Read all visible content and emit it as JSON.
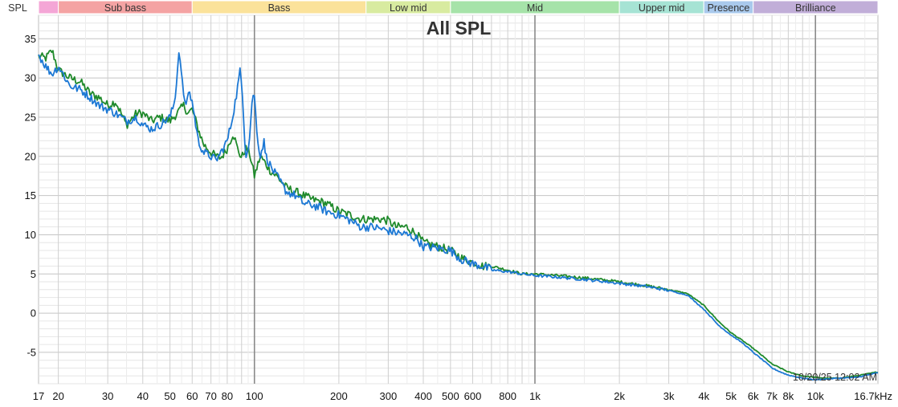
{
  "chart_data": {
    "type": "line",
    "title": "All SPL",
    "ylabel": "SPL",
    "timestamp": "10/20/25 12:02 AM",
    "x_scale": "log",
    "xlim": [
      17,
      16700
    ],
    "ylim": [
      -9,
      38
    ],
    "grid": true,
    "x_ticks": [
      {
        "v": 17,
        "label": "17"
      },
      {
        "v": 20,
        "label": "20"
      },
      {
        "v": 30,
        "label": "30"
      },
      {
        "v": 40,
        "label": "40"
      },
      {
        "v": 50,
        "label": "50"
      },
      {
        "v": 60,
        "label": "60"
      },
      {
        "v": 70,
        "label": "70"
      },
      {
        "v": 80,
        "label": "80"
      },
      {
        "v": 100,
        "label": "100"
      },
      {
        "v": 200,
        "label": "200"
      },
      {
        "v": 300,
        "label": "300"
      },
      {
        "v": 400,
        "label": "400"
      },
      {
        "v": 500,
        "label": "500"
      },
      {
        "v": 600,
        "label": "600"
      },
      {
        "v": 800,
        "label": "800"
      },
      {
        "v": 1000,
        "label": "1k"
      },
      {
        "v": 2000,
        "label": "2k"
      },
      {
        "v": 3000,
        "label": "3k"
      },
      {
        "v": 4000,
        "label": "4k"
      },
      {
        "v": 5000,
        "label": "5k"
      },
      {
        "v": 6000,
        "label": "6k"
      },
      {
        "v": 7000,
        "label": "7k"
      },
      {
        "v": 8000,
        "label": "8k"
      },
      {
        "v": 10000,
        "label": "10k"
      },
      {
        "v": 16700,
        "label": "16.7kHz"
      }
    ],
    "y_ticks": [
      {
        "v": 35,
        "label": "35"
      },
      {
        "v": 30,
        "label": "30"
      },
      {
        "v": 25,
        "label": "25"
      },
      {
        "v": 20,
        "label": "20"
      },
      {
        "v": 15,
        "label": "15"
      },
      {
        "v": 10,
        "label": "10"
      },
      {
        "v": 5,
        "label": "5"
      },
      {
        "v": 0,
        "label": "0"
      },
      {
        "v": -5,
        "label": "-5"
      }
    ],
    "bands": [
      {
        "name": "",
        "from": 17,
        "to": 20,
        "color": "#f4a6d6"
      },
      {
        "name": "Sub bass",
        "from": 20,
        "to": 60,
        "color": "#f4a3a3"
      },
      {
        "name": "Bass",
        "from": 60,
        "to": 250,
        "color": "#fbe29a"
      },
      {
        "name": "Low mid",
        "from": 250,
        "to": 500,
        "color": "#d8eba0"
      },
      {
        "name": "Mid",
        "from": 500,
        "to": 2000,
        "color": "#a6e3a9"
      },
      {
        "name": "Upper mid",
        "from": 2000,
        "to": 4000,
        "color": "#a6e3d4"
      },
      {
        "name": "Presence",
        "from": 4000,
        "to": 6000,
        "color": "#a9c9ec"
      },
      {
        "name": "Brilliance",
        "from": 6000,
        "to": 16700,
        "color": "#c1aed8"
      }
    ],
    "series": [
      {
        "color": "#1f8a2b",
        "points": [
          [
            17,
            32.8
          ],
          [
            18,
            32.5
          ],
          [
            19,
            33.5
          ],
          [
            20,
            31.0
          ],
          [
            22,
            30.0
          ],
          [
            24,
            29.5
          ],
          [
            26,
            28.0
          ],
          [
            28,
            27.5
          ],
          [
            30,
            26.5
          ],
          [
            32,
            27.0
          ],
          [
            35,
            24.0
          ],
          [
            38,
            25.5
          ],
          [
            40,
            25.5
          ],
          [
            43,
            24.5
          ],
          [
            46,
            25.0
          ],
          [
            50,
            24.5
          ],
          [
            53,
            25.5
          ],
          [
            56,
            26.5
          ],
          [
            58,
            25.5
          ],
          [
            60,
            26.0
          ],
          [
            63,
            23.5
          ],
          [
            66,
            21.5
          ],
          [
            70,
            20.5
          ],
          [
            73,
            20.0
          ],
          [
            76,
            19.8
          ],
          [
            80,
            21.0
          ],
          [
            84,
            23.0
          ],
          [
            87,
            21.0
          ],
          [
            90,
            19.8
          ],
          [
            93,
            21.0
          ],
          [
            96,
            20.5
          ],
          [
            100,
            17.5
          ],
          [
            105,
            20.0
          ],
          [
            110,
            19.0
          ],
          [
            115,
            18.0
          ],
          [
            120,
            17.5
          ],
          [
            130,
            16.0
          ],
          [
            140,
            15.5
          ],
          [
            150,
            15.0
          ],
          [
            160,
            14.5
          ],
          [
            170,
            14.3
          ],
          [
            180,
            14.0
          ],
          [
            200,
            13.0
          ],
          [
            220,
            12.5
          ],
          [
            240,
            12.0
          ],
          [
            260,
            12.0
          ],
          [
            280,
            12.0
          ],
          [
            300,
            11.8
          ],
          [
            320,
            11.0
          ],
          [
            350,
            11.0
          ],
          [
            380,
            10.0
          ],
          [
            400,
            9.0
          ],
          [
            450,
            8.5
          ],
          [
            500,
            8.0
          ],
          [
            550,
            7.0
          ],
          [
            600,
            6.5
          ],
          [
            650,
            6.0
          ],
          [
            700,
            6.0
          ],
          [
            800,
            5.5
          ],
          [
            900,
            5.0
          ],
          [
            1000,
            5.0
          ],
          [
            1200,
            4.8
          ],
          [
            1500,
            4.5
          ],
          [
            1800,
            4.2
          ],
          [
            2000,
            4.0
          ],
          [
            2500,
            3.5
          ],
          [
            3000,
            3.0
          ],
          [
            3500,
            2.5
          ],
          [
            4000,
            1.0
          ],
          [
            4500,
            -1.0
          ],
          [
            5000,
            -2.5
          ],
          [
            5500,
            -3.5
          ],
          [
            6000,
            -4.5
          ],
          [
            6500,
            -5.5
          ],
          [
            7000,
            -6.5
          ],
          [
            7500,
            -7.0
          ],
          [
            8000,
            -7.5
          ],
          [
            9000,
            -8.0
          ],
          [
            10000,
            -8.2
          ],
          [
            11000,
            -8.3
          ],
          [
            12000,
            -8.3
          ],
          [
            14000,
            -8.0
          ],
          [
            16700,
            -7.5
          ]
        ]
      },
      {
        "color": "#1c78d4",
        "points": [
          [
            17,
            33.0
          ],
          [
            18,
            31.5
          ],
          [
            19,
            30.5
          ],
          [
            20,
            31.5
          ],
          [
            22,
            29.0
          ],
          [
            24,
            28.5
          ],
          [
            26,
            27.5
          ],
          [
            28,
            26.5
          ],
          [
            30,
            26.0
          ],
          [
            32,
            25.5
          ],
          [
            35,
            24.5
          ],
          [
            38,
            25.0
          ],
          [
            40,
            24.0
          ],
          [
            43,
            23.5
          ],
          [
            46,
            24.0
          ],
          [
            50,
            25.0
          ],
          [
            52,
            27.0
          ],
          [
            54,
            34.0
          ],
          [
            55,
            30.0
          ],
          [
            57,
            26.0
          ],
          [
            58,
            28.5
          ],
          [
            60,
            27.0
          ],
          [
            63,
            22.0
          ],
          [
            66,
            20.5
          ],
          [
            70,
            20.0
          ],
          [
            73,
            19.5
          ],
          [
            76,
            20.5
          ],
          [
            80,
            22.0
          ],
          [
            83,
            24.5
          ],
          [
            86,
            27.5
          ],
          [
            89,
            31.0
          ],
          [
            91,
            27.0
          ],
          [
            93,
            20.0
          ],
          [
            96,
            22.0
          ],
          [
            98,
            27.0
          ],
          [
            100,
            28.0
          ],
          [
            102,
            23.0
          ],
          [
            105,
            20.0
          ],
          [
            108,
            22.0
          ],
          [
            110,
            20.0
          ],
          [
            115,
            18.5
          ],
          [
            120,
            17.5
          ],
          [
            130,
            15.5
          ],
          [
            140,
            15.0
          ],
          [
            150,
            14.0
          ],
          [
            160,
            13.8
          ],
          [
            170,
            13.5
          ],
          [
            180,
            13.0
          ],
          [
            200,
            12.5
          ],
          [
            220,
            11.8
          ],
          [
            240,
            11.0
          ],
          [
            260,
            11.0
          ],
          [
            280,
            10.8
          ],
          [
            300,
            10.5
          ],
          [
            320,
            10.3
          ],
          [
            350,
            10.0
          ],
          [
            380,
            9.5
          ],
          [
            400,
            8.5
          ],
          [
            450,
            8.3
          ],
          [
            500,
            8.0
          ],
          [
            550,
            6.8
          ],
          [
            600,
            6.3
          ],
          [
            650,
            6.0
          ],
          [
            700,
            5.5
          ],
          [
            800,
            5.3
          ],
          [
            900,
            5.0
          ],
          [
            1000,
            4.8
          ],
          [
            1200,
            4.6
          ],
          [
            1500,
            4.3
          ],
          [
            1800,
            4.0
          ],
          [
            2000,
            3.8
          ],
          [
            2500,
            3.4
          ],
          [
            3000,
            2.9
          ],
          [
            3500,
            2.3
          ],
          [
            4000,
            0.5
          ],
          [
            4500,
            -1.5
          ],
          [
            5000,
            -2.8
          ],
          [
            5500,
            -3.8
          ],
          [
            6000,
            -5.0
          ],
          [
            6500,
            -6.0
          ],
          [
            7000,
            -7.0
          ],
          [
            7500,
            -7.5
          ],
          [
            8000,
            -7.9
          ],
          [
            9000,
            -8.3
          ],
          [
            10000,
            -8.5
          ],
          [
            11000,
            -8.4
          ],
          [
            12000,
            -8.3
          ],
          [
            14000,
            -8.2
          ],
          [
            16700,
            -7.6
          ]
        ]
      }
    ]
  }
}
